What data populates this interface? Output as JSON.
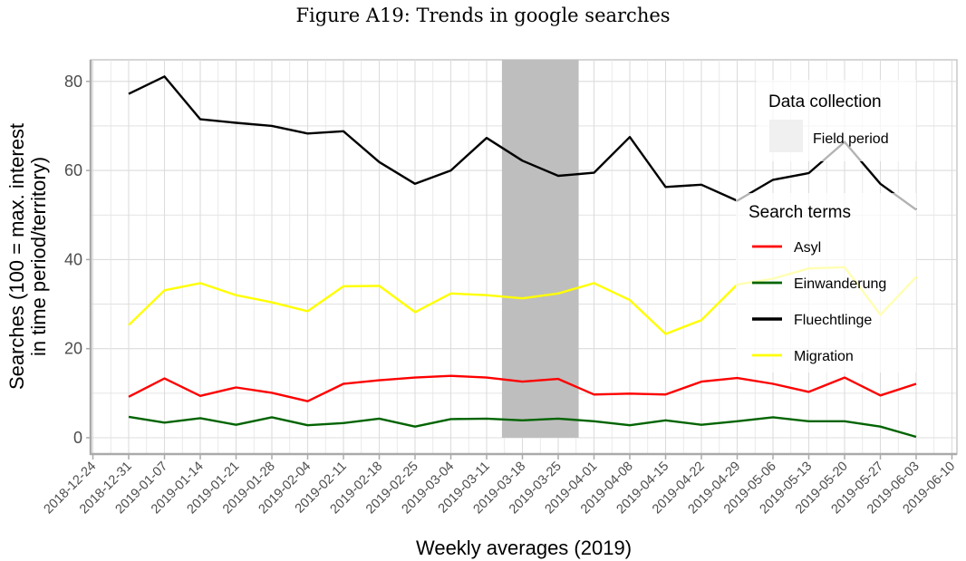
{
  "chart_data": {
    "type": "line",
    "title": "Figure A19: Trends in google searches",
    "xlabel": "Weekly averages (2019)",
    "ylabel_lines": [
      "Searches (100 = max. interest",
      "in time period/territory)"
    ],
    "ylim": [
      -3.5,
      85
    ],
    "yticks": [
      0,
      20,
      40,
      60,
      80
    ],
    "xticks": [
      "2018-12-24",
      "2018-12-31",
      "2019-01-07",
      "2019-01-14",
      "2019-01-21",
      "2019-01-28",
      "2019-02-04",
      "2019-02-11",
      "2019-02-18",
      "2019-02-25",
      "2019-03-04",
      "2019-03-11",
      "2019-03-18",
      "2019-03-25",
      "2019-04-01",
      "2019-04-08",
      "2019-04-15",
      "2019-04-22",
      "2019-04-29",
      "2019-05-06",
      "2019-05-13",
      "2019-05-20",
      "2019-05-27",
      "2019-06-03",
      "2019-06-10"
    ],
    "grid": true,
    "x": [
      "2018-12-31",
      "2019-01-07",
      "2019-01-14",
      "2019-01-21",
      "2019-01-28",
      "2019-02-04",
      "2019-02-11",
      "2019-02-18",
      "2019-02-25",
      "2019-03-04",
      "2019-03-11",
      "2019-03-18",
      "2019-03-25",
      "2019-04-01",
      "2019-04-08",
      "2019-04-15",
      "2019-04-22",
      "2019-04-29",
      "2019-05-06",
      "2019-05-13",
      "2019-05-20",
      "2019-05-27",
      "2019-06-03"
    ],
    "series": [
      {
        "name": "Asyl",
        "color": "#ff0000",
        "values": [
          9.2,
          13.3,
          9.4,
          11.3,
          10.1,
          8.2,
          12.1,
          12.9,
          13.5,
          13.9,
          13.5,
          12.6,
          13.2,
          9.7,
          9.9,
          9.7,
          12.6,
          13.4,
          12.1,
          10.3,
          13.5,
          9.5,
          12.1
        ]
      },
      {
        "name": "Einwanderung",
        "color": "#006400",
        "values": [
          4.7,
          3.4,
          4.4,
          2.9,
          4.6,
          2.8,
          3.3,
          4.3,
          2.5,
          4.2,
          4.3,
          3.9,
          4.3,
          3.7,
          2.8,
          3.9,
          2.9,
          3.7,
          4.6,
          3.7,
          3.7,
          2.5,
          0.2
        ]
      },
      {
        "name": "Fluechtlinge",
        "color": "#000000",
        "values": [
          77.2,
          81.1,
          71.5,
          70.7,
          70.0,
          68.3,
          68.8,
          61.9,
          57.0,
          60.0,
          67.3,
          62.2,
          58.8,
          59.5,
          67.5,
          56.3,
          56.8,
          53.2,
          57.9,
          59.4,
          66.4,
          57.0,
          51.2
        ]
      },
      {
        "name": "Migration",
        "color": "#ffff00",
        "values": [
          25.3,
          33.1,
          34.7,
          32.0,
          30.4,
          28.4,
          34.0,
          34.1,
          28.2,
          32.4,
          32.0,
          31.3,
          32.4,
          34.7,
          30.9,
          23.3,
          26.4,
          34.4,
          35.7,
          38.0,
          38.3,
          27.6,
          36.1
        ]
      }
    ],
    "field_period": {
      "label": "Field period",
      "start": "2019-03-14",
      "end": "2019-03-29",
      "color": "#bebebe"
    },
    "legend": {
      "placement": "top-right",
      "data_collection_title": "Data collection",
      "search_terms_title": "Search terms"
    }
  }
}
